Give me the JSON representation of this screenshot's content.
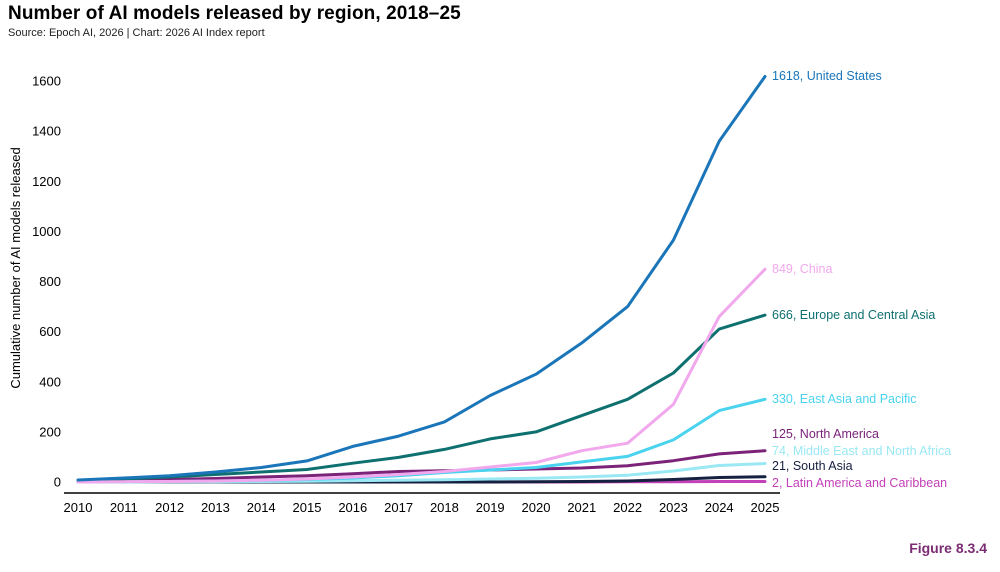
{
  "title": "Number of AI models released by region, 2018–25",
  "subtitle": "Source: Epoch AI, 2026 | Chart: 2026 AI Index report",
  "figure_label": "Figure 8.3.4",
  "chart_data": {
    "type": "line",
    "title": "Number of AI models released by region, 2018–25",
    "xlabel": "",
    "ylabel": "Cumulative number of AI models released",
    "x": [
      2010,
      2011,
      2012,
      2013,
      2014,
      2015,
      2016,
      2017,
      2018,
      2019,
      2020,
      2021,
      2022,
      2023,
      2024,
      2025
    ],
    "yticks": [
      0,
      200,
      400,
      600,
      800,
      1000,
      1200,
      1400,
      1600
    ],
    "ylim": [
      -40,
      1720
    ],
    "grid": false,
    "series": [
      {
        "name": "United States",
        "end_label": "1618, United States",
        "color": "#1a75b9",
        "values": [
          8,
          16,
          25,
          40,
          58,
          84,
          142,
          183,
          240,
          345,
          430,
          555,
          700,
          965,
          1360,
          1618
        ]
      },
      {
        "name": "China",
        "end_label": "849, China",
        "color": "#f2a8ec",
        "values": [
          0,
          1,
          2,
          4,
          7,
          12,
          20,
          30,
          42,
          60,
          78,
          125,
          155,
          310,
          660,
          849
        ]
      },
      {
        "name": "Europe and Central Asia",
        "end_label": "666, Europe and Central Asia",
        "color": "#0f7070",
        "values": [
          6,
          12,
          20,
          30,
          40,
          50,
          75,
          98,
          130,
          172,
          200,
          265,
          330,
          435,
          610,
          666
        ]
      },
      {
        "name": "East Asia and Pacific",
        "end_label": "330, East Asia and Pacific",
        "color": "#4ad3ee",
        "values": [
          0,
          1,
          2,
          4,
          6,
          10,
          16,
          25,
          38,
          48,
          58,
          80,
          102,
          168,
          285,
          330
        ]
      },
      {
        "name": "North America",
        "end_label": "125, North America",
        "color": "#7a2379",
        "values": [
          2,
          6,
          10,
          14,
          20,
          25,
          33,
          42,
          45,
          48,
          52,
          56,
          65,
          85,
          112,
          125
        ]
      },
      {
        "name": "Middle East and North Africa",
        "end_label": "74, Middle East and North Africa",
        "color": "#9ae8f4",
        "values": [
          0,
          0,
          1,
          1,
          2,
          3,
          5,
          7,
          9,
          12,
          15,
          20,
          27,
          44,
          66,
          74
        ]
      },
      {
        "name": "South Asia",
        "end_label": "21, South Asia",
        "color": "#162040",
        "values": [
          0,
          0,
          0,
          0,
          0,
          0,
          0,
          0,
          0,
          0,
          1,
          2,
          4,
          10,
          18,
          21
        ]
      },
      {
        "name": "Latin America and Caribbean",
        "end_label": "2, Latin America and Caribbean",
        "color": "#c341b8",
        "values": [
          0,
          0,
          0,
          0,
          0,
          0,
          0,
          0,
          0,
          0,
          0,
          0,
          1,
          1,
          2,
          2
        ]
      }
    ]
  }
}
